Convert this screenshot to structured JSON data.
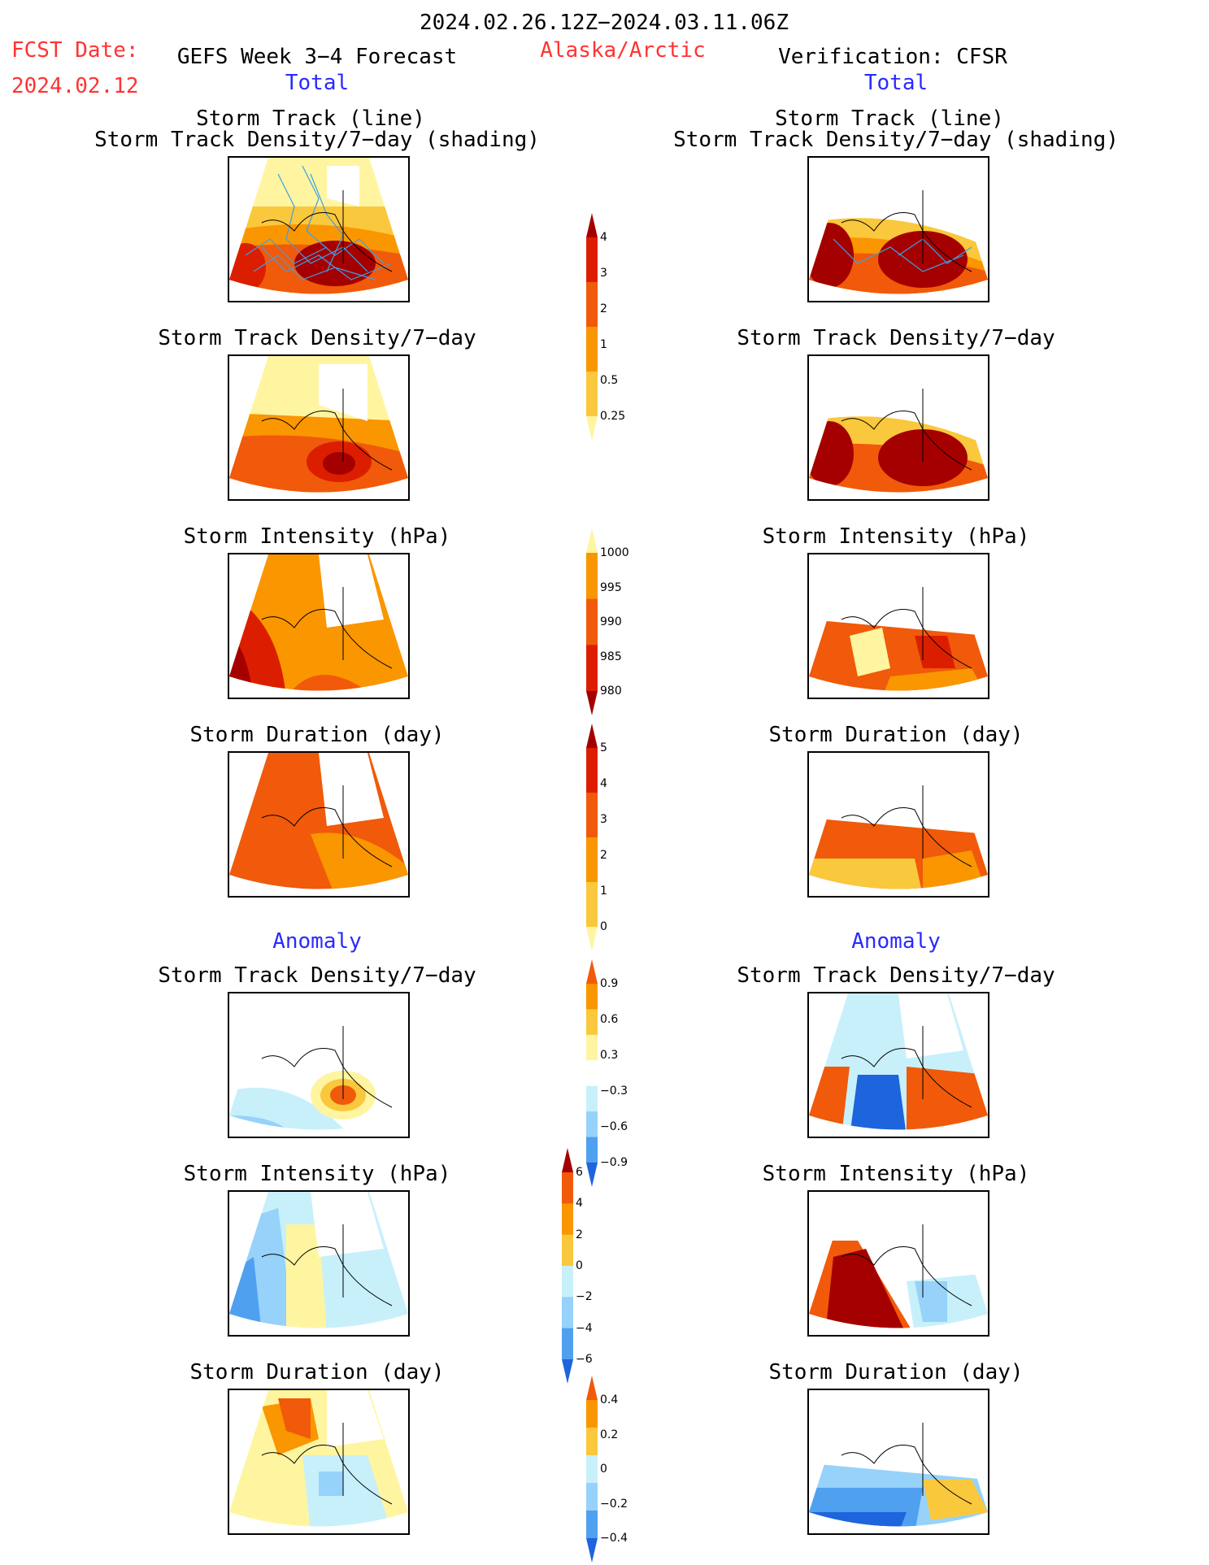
{
  "header": {
    "period": "2024.02.26.12Z−2024.03.11.06Z",
    "fcst_label": "FCST Date:",
    "fcst_date": "2024.02.12",
    "model": "GEFS Week 3−4 Forecast",
    "region": "Alaska/Arctic",
    "verification": "Verification: CFSR"
  },
  "section_total": "Total",
  "section_anomaly": "Anomaly",
  "titles": {
    "track_line": "Storm Track (line)",
    "track_density_shading": "Storm Track Density/7−day (shading)",
    "track_density": "Storm Track Density/7−day",
    "intensity": "Storm Intensity (hPa)",
    "duration": "Storm Duration (day)"
  },
  "colors": {
    "dark_red": "#a50000",
    "red": "#dc1e00",
    "orange_red": "#f05a0a",
    "orange": "#fa9600",
    "light_orange": "#fac83c",
    "yellow": "#fff5a0",
    "light_blue": "#c8f0fa",
    "sky_blue": "#96d2fa",
    "mid_blue": "#50a0f0",
    "blue": "#1e64dc",
    "track_line": "#3ca0e6"
  },
  "chart_data": [
    {
      "type": "heatmap",
      "name": "colorbar-density",
      "ticks": [
        "4",
        "3",
        "2",
        "1",
        "0.5",
        "0.25"
      ],
      "colors": [
        "#a50000",
        "#dc1e00",
        "#f05a0a",
        "#fa9600",
        "#fac83c",
        "#fff5a0"
      ]
    },
    {
      "type": "heatmap",
      "name": "colorbar-intensity",
      "ticks": [
        "1000",
        "995",
        "990",
        "985",
        "980"
      ],
      "colors": [
        "#fff5a0",
        "#fa9600",
        "#f05a0a",
        "#dc1e00",
        "#a50000"
      ]
    },
    {
      "type": "heatmap",
      "name": "colorbar-duration",
      "ticks": [
        "5",
        "4",
        "3",
        "2",
        "1",
        "0"
      ],
      "colors": [
        "#a50000",
        "#dc1e00",
        "#f05a0a",
        "#fa9600",
        "#fac83c",
        "#fff5a0"
      ]
    },
    {
      "type": "heatmap",
      "name": "colorbar-density-anomaly",
      "ticks": [
        "0.9",
        "0.6",
        "0.3",
        "−0.3",
        "−0.6",
        "−0.9"
      ],
      "colors": [
        "#f05a0a",
        "#fa9600",
        "#fac83c",
        "#fff5a0",
        "#ffffff",
        "#c8f0fa",
        "#96d2fa",
        "#50a0f0",
        "#1e64dc"
      ]
    },
    {
      "type": "heatmap",
      "name": "colorbar-intensity-anomaly",
      "ticks": [
        "6",
        "4",
        "2",
        "0",
        "−2",
        "−4",
        "−6"
      ],
      "colors": [
        "#a50000",
        "#f05a0a",
        "#fa9600",
        "#fac83c",
        "#c8f0fa",
        "#96d2fa",
        "#50a0f0",
        "#1e64dc"
      ]
    },
    {
      "type": "heatmap",
      "name": "colorbar-duration-anomaly",
      "ticks": [
        "0.4",
        "0.2",
        "0",
        "−0.2",
        "−0.4"
      ],
      "colors": [
        "#f05a0a",
        "#fa9600",
        "#fac83c",
        "#c8f0fa",
        "#96d2fa",
        "#50a0f0",
        "#1e64dc"
      ]
    }
  ]
}
